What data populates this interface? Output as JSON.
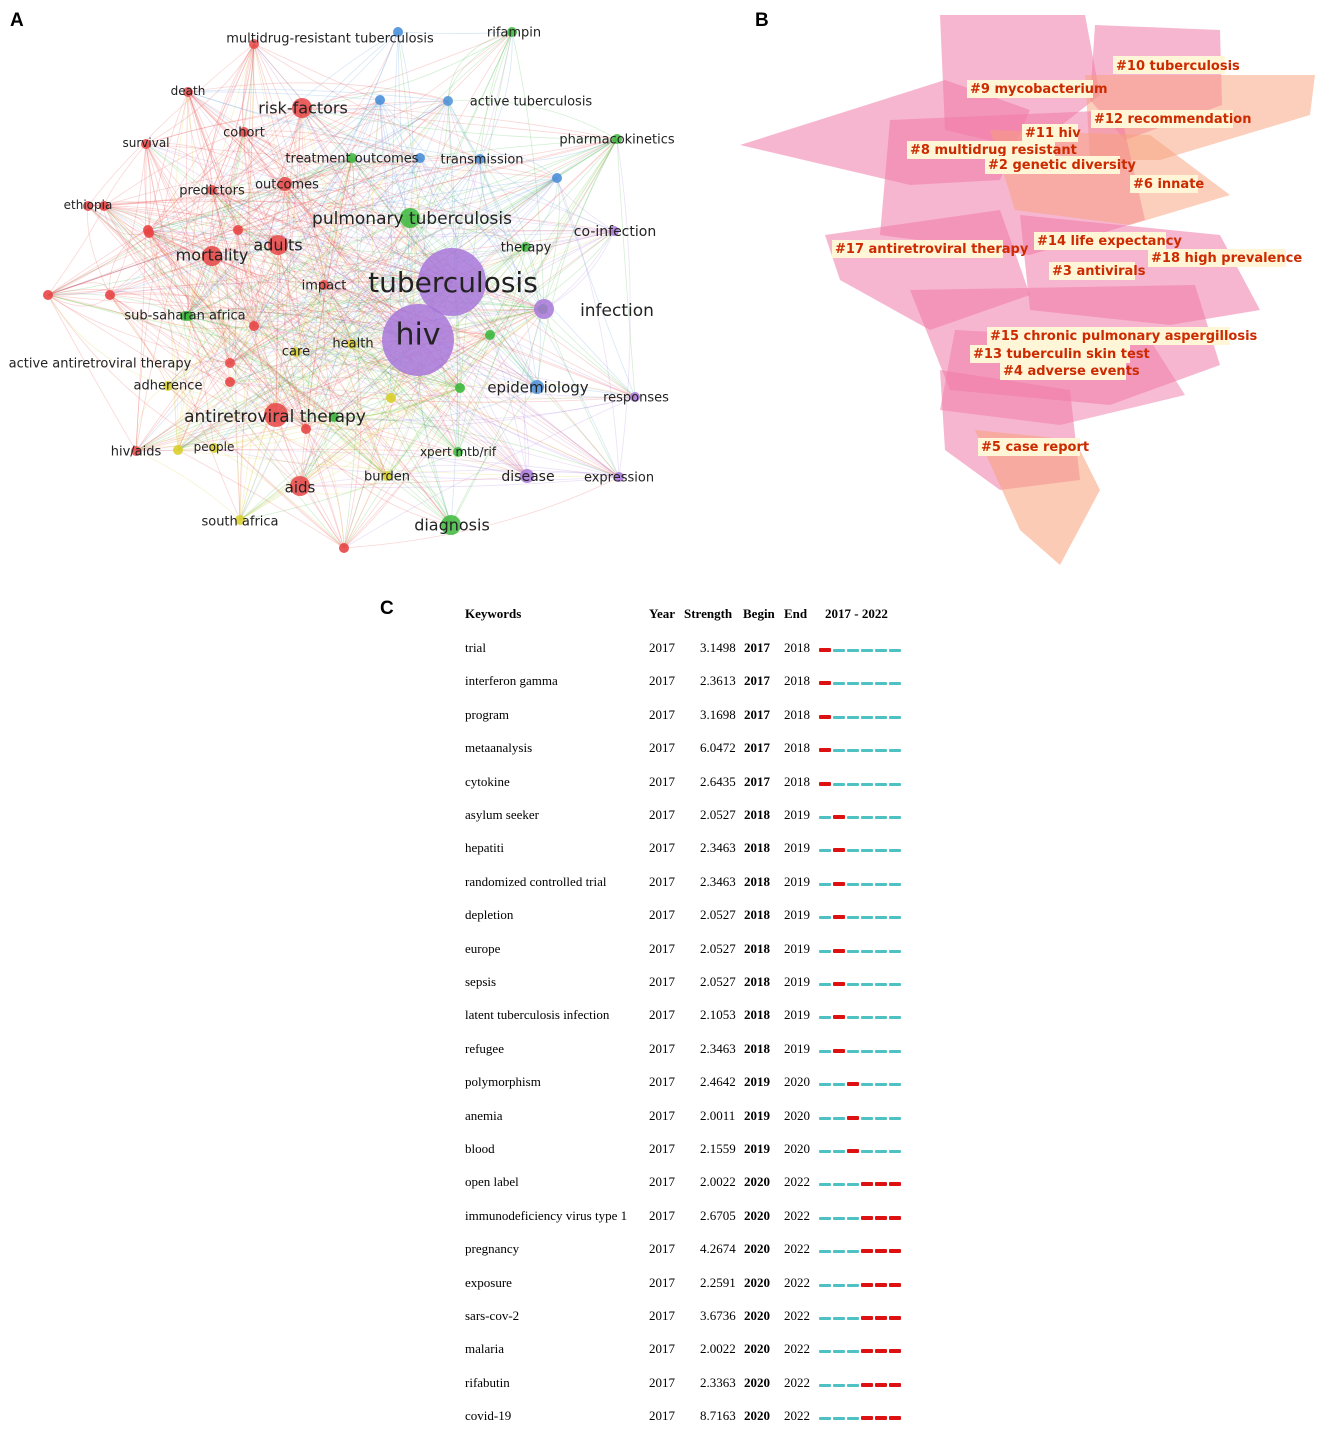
{
  "panels": {
    "a": "A",
    "b": "B",
    "c": "C"
  },
  "network": {
    "colors": {
      "red": "#e84545",
      "green": "#3cb83c",
      "blue": "#4a90d9",
      "purple": "#a877d9",
      "yellow": "#d8cf2c"
    },
    "nodes": [
      {
        "label": "tuberculosis",
        "cluster": "purple",
        "weight": 10
      },
      {
        "label": "hiv",
        "cluster": "purple",
        "weight": 9
      },
      {
        "label": "pulmonary tuberculosis",
        "cluster": "green",
        "weight": 4
      },
      {
        "label": "antiretroviral therapy",
        "cluster": "red",
        "weight": 5
      },
      {
        "label": "mortality",
        "cluster": "red",
        "weight": 4
      },
      {
        "label": "adults",
        "cluster": "red",
        "weight": 3
      },
      {
        "label": "risk-factors",
        "cluster": "red",
        "weight": 3
      },
      {
        "label": "outcomes",
        "cluster": "red",
        "weight": 2
      },
      {
        "label": "predictors",
        "cluster": "red",
        "weight": 1
      },
      {
        "label": "cohort",
        "cluster": "red",
        "weight": 1
      },
      {
        "label": "death",
        "cluster": "red",
        "weight": 1
      },
      {
        "label": "survival",
        "cluster": "red",
        "weight": 1
      },
      {
        "label": "ethiopia",
        "cluster": "red",
        "weight": 1
      },
      {
        "label": "impact",
        "cluster": "red",
        "weight": 1
      },
      {
        "label": "aids",
        "cluster": "red",
        "weight": 3
      },
      {
        "label": "hiv/aids",
        "cluster": "red",
        "weight": 1
      },
      {
        "label": "active antiretroviral therapy",
        "cluster": "red",
        "weight": 1
      },
      {
        "label": "multidrug-resistant tuberculosis",
        "cluster": "red",
        "weight": 1
      },
      {
        "label": "sub-saharan africa",
        "cluster": "green",
        "weight": 1
      },
      {
        "label": "care",
        "cluster": "yellow",
        "weight": 1
      },
      {
        "label": "health",
        "cluster": "yellow",
        "weight": 1
      },
      {
        "label": "adherence",
        "cluster": "yellow",
        "weight": 1
      },
      {
        "label": "people",
        "cluster": "yellow",
        "weight": 1
      },
      {
        "label": "burden",
        "cluster": "yellow",
        "weight": 1
      },
      {
        "label": "south africa",
        "cluster": "yellow",
        "weight": 1
      },
      {
        "label": "treatment outcomes",
        "cluster": "green",
        "weight": 1
      },
      {
        "label": "transmission",
        "cluster": "blue",
        "weight": 1
      },
      {
        "label": "active tuberculosis",
        "cluster": "blue",
        "weight": 1
      },
      {
        "label": "rifampin",
        "cluster": "green",
        "weight": 1
      },
      {
        "label": "pharmacokinetics",
        "cluster": "green",
        "weight": 1
      },
      {
        "label": "therapy",
        "cluster": "green",
        "weight": 1
      },
      {
        "label": "co-infection",
        "cluster": "purple",
        "weight": 1
      },
      {
        "label": "infection",
        "cluster": "purple",
        "weight": 3
      },
      {
        "label": "epidemiology",
        "cluster": "blue",
        "weight": 2
      },
      {
        "label": "responses",
        "cluster": "purple",
        "weight": 1
      },
      {
        "label": "xpert mtb/rif",
        "cluster": "green",
        "weight": 1
      },
      {
        "label": "disease",
        "cluster": "purple",
        "weight": 2
      },
      {
        "label": "expression",
        "cluster": "purple",
        "weight": 1
      },
      {
        "label": "diagnosis",
        "cluster": "green",
        "weight": 3
      }
    ]
  },
  "clusters": {
    "labels": [
      "#10 tuberculosis",
      "#9 mycobacterium",
      "#12 recommendation",
      "#11 hiv",
      "#8 multidrug resistant",
      "#2 genetic diversity",
      "#6 innate",
      "#17 antiretroviral therapy",
      "#14 life expectancy",
      "#18 high prevalence",
      "#3 antivirals",
      "#15 chronic pulmonary aspergillosis",
      "#13 tuberculin skin test",
      "#4 adverse events",
      "#5 case report"
    ]
  },
  "burst_table": {
    "headers": {
      "keywords": "Keywords",
      "year": "Year",
      "strength": "Strength",
      "begin": "Begin",
      "end": "End",
      "range": "2017 - 2022"
    },
    "timeline_start": 2017,
    "timeline_end": 2022,
    "colors": {
      "burst": "#dd1111",
      "base": "#4ec2c2"
    },
    "rows": [
      {
        "keyword": "trial",
        "year": "2017",
        "strength": "3.1498",
        "begin": "2017",
        "end": "2018"
      },
      {
        "keyword": "interferon gamma",
        "year": "2017",
        "strength": "2.3613",
        "begin": "2017",
        "end": "2018"
      },
      {
        "keyword": "program",
        "year": "2017",
        "strength": "3.1698",
        "begin": "2017",
        "end": "2018"
      },
      {
        "keyword": "metaanalysis",
        "year": "2017",
        "strength": "6.0472",
        "begin": "2017",
        "end": "2018"
      },
      {
        "keyword": "cytokine",
        "year": "2017",
        "strength": "2.6435",
        "begin": "2017",
        "end": "2018"
      },
      {
        "keyword": "asylum seeker",
        "year": "2017",
        "strength": "2.0527",
        "begin": "2018",
        "end": "2019"
      },
      {
        "keyword": "hepatiti",
        "year": "2017",
        "strength": "2.3463",
        "begin": "2018",
        "end": "2019"
      },
      {
        "keyword": "randomized controlled trial",
        "year": "2017",
        "strength": "2.3463",
        "begin": "2018",
        "end": "2019"
      },
      {
        "keyword": "depletion",
        "year": "2017",
        "strength": "2.0527",
        "begin": "2018",
        "end": "2019"
      },
      {
        "keyword": "europe",
        "year": "2017",
        "strength": "2.0527",
        "begin": "2018",
        "end": "2019"
      },
      {
        "keyword": "sepsis",
        "year": "2017",
        "strength": "2.0527",
        "begin": "2018",
        "end": "2019"
      },
      {
        "keyword": "latent tuberculosis infection",
        "year": "2017",
        "strength": "2.1053",
        "begin": "2018",
        "end": "2019"
      },
      {
        "keyword": "refugee",
        "year": "2017",
        "strength": "2.3463",
        "begin": "2018",
        "end": "2019"
      },
      {
        "keyword": "polymorphism",
        "year": "2017",
        "strength": "2.4642",
        "begin": "2019",
        "end": "2020"
      },
      {
        "keyword": "anemia",
        "year": "2017",
        "strength": "2.0011",
        "begin": "2019",
        "end": "2020"
      },
      {
        "keyword": "blood",
        "year": "2017",
        "strength": "2.1559",
        "begin": "2019",
        "end": "2020"
      },
      {
        "keyword": "open label",
        "year": "2017",
        "strength": "2.0022",
        "begin": "2020",
        "end": "2022"
      },
      {
        "keyword": "immunodeficiency virus type 1",
        "year": "2017",
        "strength": "2.6705",
        "begin": "2020",
        "end": "2022"
      },
      {
        "keyword": "pregnancy",
        "year": "2017",
        "strength": "4.2674",
        "begin": "2020",
        "end": "2022"
      },
      {
        "keyword": "exposure",
        "year": "2017",
        "strength": "2.2591",
        "begin": "2020",
        "end": "2022"
      },
      {
        "keyword": "sars-cov-2",
        "year": "2017",
        "strength": "3.6736",
        "begin": "2020",
        "end": "2022"
      },
      {
        "keyword": "malaria",
        "year": "2017",
        "strength": "2.0022",
        "begin": "2020",
        "end": "2022"
      },
      {
        "keyword": "rifabutin",
        "year": "2017",
        "strength": "2.3363",
        "begin": "2020",
        "end": "2022"
      },
      {
        "keyword": "covid-19",
        "year": "2017",
        "strength": "8.7163",
        "begin": "2020",
        "end": "2022"
      }
    ]
  }
}
